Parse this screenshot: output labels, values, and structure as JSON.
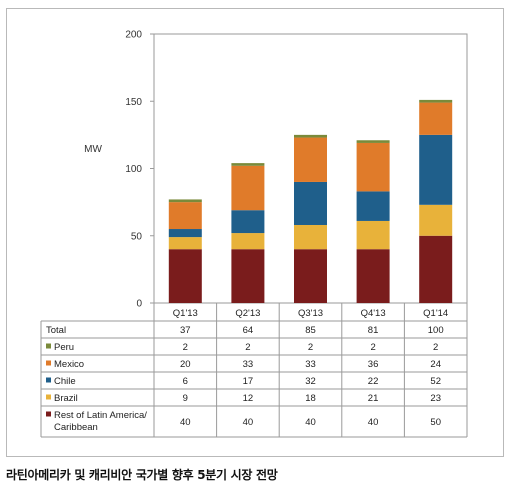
{
  "chart_data": {
    "type": "bar",
    "stacked": true,
    "ylabel": "MW",
    "ylim": [
      0,
      200
    ],
    "yticks": [
      0,
      50,
      100,
      150,
      200
    ],
    "categories": [
      "Q1'13",
      "Q2'13",
      "Q3'13",
      "Q4'13",
      "Q1'14"
    ],
    "series": [
      {
        "name": "Rest of Latin America/ Caribbean",
        "label_lines": [
          "Rest of Latin America/",
          "Caribbean"
        ],
        "color": "#7a1c1c",
        "values": [
          40,
          40,
          40,
          40,
          50
        ]
      },
      {
        "name": "Brazil",
        "label_lines": [
          "Brazil"
        ],
        "color": "#e8b23a",
        "values": [
          9,
          12,
          18,
          21,
          23
        ]
      },
      {
        "name": "Chile",
        "label_lines": [
          "Chile"
        ],
        "color": "#1f5f8b",
        "values": [
          6,
          17,
          32,
          22,
          52
        ]
      },
      {
        "name": "Mexico",
        "label_lines": [
          "Mexico"
        ],
        "color": "#e07b2a",
        "values": [
          20,
          33,
          33,
          36,
          24
        ]
      },
      {
        "name": "Peru",
        "label_lines": [
          "Peru"
        ],
        "color": "#7a8a3a",
        "values": [
          2,
          2,
          2,
          2,
          2
        ]
      }
    ],
    "totals": {
      "label": "Total",
      "values": [
        37,
        64,
        85,
        81,
        100
      ]
    },
    "grid": false
  },
  "caption": "라틴아메리카 및 캐리비안 국가별 향후 5분기 시장 전망"
}
